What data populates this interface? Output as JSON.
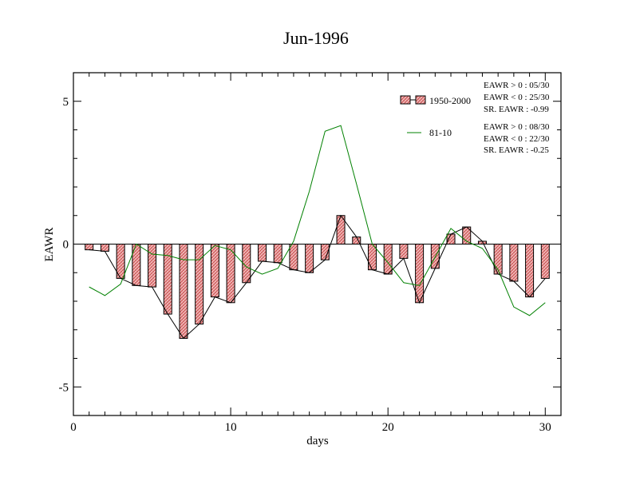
{
  "chart_data": {
    "type": "bar",
    "title": "Jun-1996",
    "xlabel": "days",
    "ylabel": "EAWR",
    "xlim": [
      0,
      31
    ],
    "ylim": [
      -6,
      6
    ],
    "x_ticks": [
      0,
      10,
      20,
      30
    ],
    "y_ticks": [
      -5,
      0,
      5
    ],
    "x": [
      1,
      2,
      3,
      4,
      5,
      6,
      7,
      8,
      9,
      10,
      11,
      12,
      13,
      14,
      15,
      16,
      17,
      18,
      19,
      20,
      21,
      22,
      23,
      24,
      25,
      26,
      27,
      28,
      29,
      30
    ],
    "series": [
      {
        "name": "1950-2000",
        "kind": "bar",
        "color": "#e8a0a0",
        "values": [
          -0.2,
          -0.25,
          -1.2,
          -1.45,
          -1.5,
          -2.45,
          -3.3,
          -2.8,
          -1.85,
          -2.05,
          -1.35,
          -0.6,
          -0.65,
          -0.9,
          -1.0,
          -0.55,
          1.0,
          0.25,
          -0.9,
          -1.05,
          -0.5,
          -2.05,
          -0.85,
          0.35,
          0.6,
          0.1,
          -1.05,
          -1.3,
          -1.85,
          -1.2
        ]
      },
      {
        "name": "81-10",
        "kind": "line",
        "color": "#008000",
        "values": [
          -1.5,
          -1.8,
          -1.4,
          0.0,
          -0.35,
          -0.4,
          -0.55,
          -0.55,
          -0.05,
          -0.2,
          -0.8,
          -1.05,
          -0.85,
          0.1,
          1.85,
          3.95,
          4.15,
          2.1,
          0.0,
          -0.65,
          -1.35,
          -1.45,
          -0.45,
          0.55,
          0.1,
          -0.15,
          -0.9,
          -2.2,
          -2.5,
          -2.05
        ]
      }
    ],
    "legend": {
      "placement": "top-right",
      "items": [
        "1950-2000",
        "81-10"
      ]
    },
    "annotations": {
      "group1": [
        "EAWR > 0 : 05/30",
        "EAWR < 0 : 25/30",
        "SR. EAWR : -0.99"
      ],
      "group2": [
        "EAWR > 0 : 08/30",
        "EAWR < 0 : 22/30",
        "SR. EAWR : -0.25"
      ]
    }
  }
}
